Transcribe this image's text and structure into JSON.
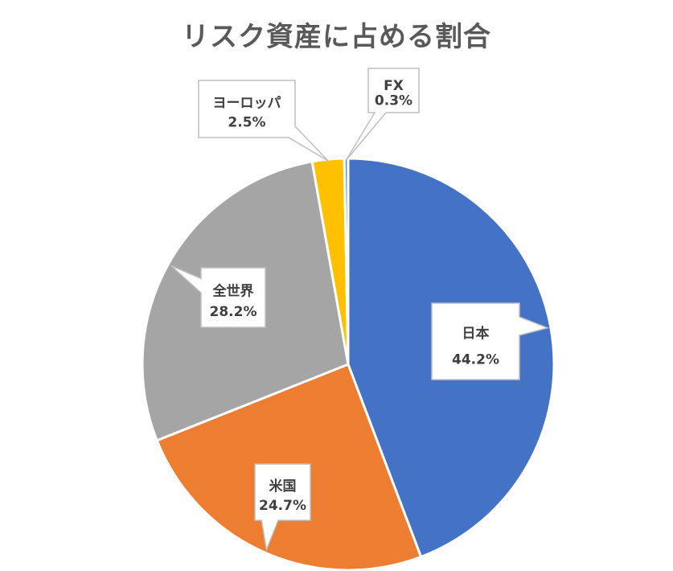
{
  "chart_data": {
    "type": "pie",
    "title": "リスク資産に占める割合",
    "categories": [
      "日本",
      "米国",
      "全世界",
      "ヨーロッパ",
      "FX"
    ],
    "values": [
      44.2,
      24.7,
      28.2,
      2.5,
      0.3
    ],
    "value_labels": [
      "44.2%",
      "24.7%",
      "28.2%",
      "2.5%",
      "0.3%"
    ],
    "colors": [
      "#4472C4",
      "#ED7D31",
      "#A5A5A5",
      "#FFC000",
      "#5B9BD5"
    ],
    "start_angle": "12 o'clock",
    "direction": "clockwise",
    "legend": "none",
    "data_labels": "callouts"
  }
}
